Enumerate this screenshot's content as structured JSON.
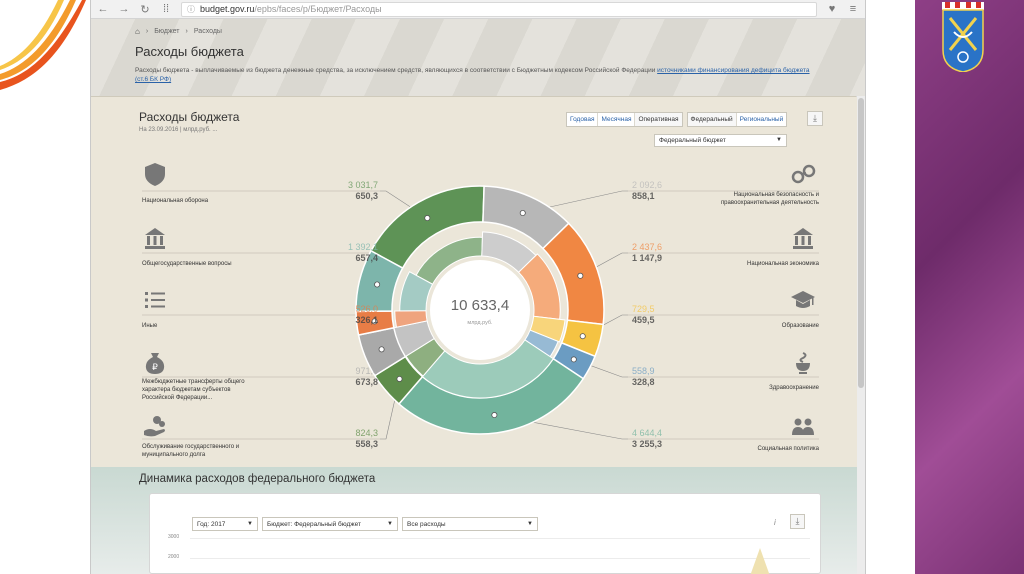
{
  "colors": {
    "defense": "#5e9356",
    "security": "#b7b7b7",
    "economy": "#f08743",
    "education": "#f5c342",
    "health": "#6b9cc2",
    "social": "#72b49d",
    "general": "#7db5ab",
    "other": "#e87d46",
    "transfers": "#a9a9a9",
    "debt": "#5e8d4a"
  },
  "browser": {
    "url_host": "budget.gov.ru",
    "url_path": "/epbs/faces/p/Бюджет/Расходы"
  },
  "breadcrumbs": [
    "Бюджет",
    "Расходы"
  ],
  "page_title": "Расходы бюджета",
  "intro_text": "Расходы бюджета - выплачиваемые из бюджета денежные средства, за исключением средств, являющихся в соответствии с Бюджетным кодексом Российской Федерации",
  "intro_link": "источниками финансирования дефицита бюджета",
  "intro_ref": "(ст.6 БК РФ)",
  "panel": {
    "title": "Расходы бюджета",
    "subtitle": "На 23.09.2016 | млрд.руб. ...",
    "modes_period": [
      "Годовая",
      "Месячная",
      "Оперативная"
    ],
    "modes_level": [
      "Федеральный",
      "Региональный"
    ],
    "budget_select": "Федеральный бюджет"
  },
  "center": {
    "value": "10 633,4",
    "unit": "млрд.руб."
  },
  "categories_left": [
    {
      "key": "defense",
      "icon": "shield-icon",
      "label": "Национальная оборона",
      "plan": "3 031,7",
      "fact": "650,3"
    },
    {
      "key": "general",
      "icon": "government-building-icon",
      "label": "Общегосударственные вопросы",
      "plan": "1 392,1",
      "fact": "657,4"
    },
    {
      "key": "other",
      "icon": "list-icon",
      "label": "Иные",
      "plan": "526,0",
      "fact": "326,1"
    },
    {
      "key": "transfers",
      "icon": "money-bag-icon",
      "label": "Межбюджетные трансферты общего характера бюджетам субъектов Российской Федерации...",
      "plan": "971,4",
      "fact": "673,8"
    },
    {
      "key": "debt",
      "icon": "hand-coins-icon",
      "label": "Обслуживание государственного и муниципального долга",
      "plan": "824,3",
      "fact": "558,3"
    }
  ],
  "categories_right": [
    {
      "key": "security",
      "icon": "handcuffs-icon",
      "label": "Национальная безопасность и правоохранительная деятельность",
      "plan": "2 092,6",
      "fact": "858,1"
    },
    {
      "key": "economy",
      "icon": "bank-icon",
      "label": "Национальная экономика",
      "plan": "2 437,6",
      "fact": "1 147,9"
    },
    {
      "key": "education",
      "icon": "graduation-cap-icon",
      "label": "Образование",
      "plan": "729,5",
      "fact": "459,5"
    },
    {
      "key": "health",
      "icon": "medicine-icon",
      "label": "Здравоохранение",
      "plan": "558,9",
      "fact": "328,8"
    },
    {
      "key": "social",
      "icon": "people-icon",
      "label": "Социальная политика",
      "plan": "4 644,4",
      "fact": "3 255,3"
    }
  ],
  "dynamics": {
    "title": "Динамика расходов федерального бюджета",
    "year_select": "Год: 2017",
    "budget_select": "Бюджет: Федеральный бюджет",
    "expense_select": "Все расходы",
    "y_ticks": [
      "3000",
      "2000"
    ]
  },
  "chart_data": {
    "type": "pie",
    "title": "Расходы бюджета",
    "unit": "млрд.руб.",
    "total": 10633.4,
    "categories": [
      "Национальная оборона",
      "Национальная безопасность и правоохранительная деятельность",
      "Национальная экономика",
      "Образование",
      "Здравоохранение",
      "Социальная политика",
      "Обслуживание государственного и муниципального долга",
      "Межбюджетные трансферты общего характера бюджетам субъектов Российской Федерации...",
      "Иные",
      "Общегосударственные вопросы"
    ],
    "series": [
      {
        "values": [
          3031.7,
          2092.6,
          2437.6,
          729.5,
          558.9,
          4644.4,
          824.3,
          971.4,
          526.0,
          1392.1
        ]
      },
      {
        "values": [
          650.3,
          858.1,
          1147.9,
          459.5,
          328.8,
          3255.3,
          558.3,
          673.8,
          326.1,
          657.4
        ]
      }
    ]
  }
}
